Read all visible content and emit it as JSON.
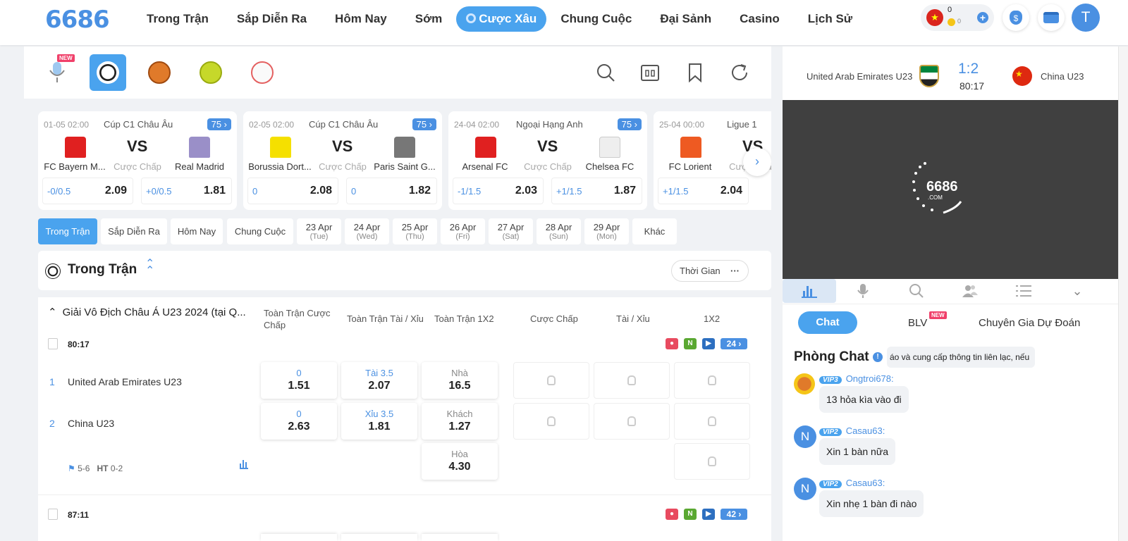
{
  "header": {
    "logo": "6686",
    "nav": [
      "Trong Trận",
      "Sắp Diễn Ra",
      "Hôm Nay",
      "Sớm",
      "Cược Xâu",
      "Chung Cuộc",
      "Đại Sảnh",
      "Casino",
      "Lịch Sử"
    ],
    "balance": "0",
    "coins": "0",
    "avatar": "T"
  },
  "sports": {
    "new_badge": "NEW"
  },
  "cards": [
    {
      "date": "01-05 02:00",
      "league": "Cúp C1 Châu Âu",
      "count": "75",
      "home": "FC Bayern M...",
      "away": "Real Madrid",
      "vs": "VS",
      "mid": "Cược Chấp",
      "o1h": "-0/0.5",
      "o1v": "2.09",
      "o2h": "+0/0.5",
      "o2v": "1.81",
      "hc": "#e02020",
      "ac": "#9a8fc8"
    },
    {
      "date": "02-05 02:00",
      "league": "Cúp C1 Châu Âu",
      "count": "75",
      "home": "Borussia Dort...",
      "away": "Paris Saint G...",
      "vs": "VS",
      "mid": "Cược Chấp",
      "o1h": "0",
      "o1v": "2.08",
      "o2h": "0",
      "o2v": "1.82",
      "hc": "#f5e000",
      "ac": "#777777"
    },
    {
      "date": "24-04 02:00",
      "league": "Ngoại Hạng Anh",
      "count": "75",
      "home": "Arsenal FC",
      "away": "Chelsea FC",
      "vs": "VS",
      "mid": "Cược Chấp",
      "o1h": "-1/1.5",
      "o1v": "2.03",
      "o2h": "+1/1.5",
      "o2v": "1.87",
      "hc": "#e02020",
      "ac": "#eeeeee"
    },
    {
      "date": "25-04 00:00",
      "league": "Ligue 1",
      "count": "",
      "home": "FC Lorient",
      "away": "",
      "vs": "VS",
      "mid": "Cược Chấp",
      "o1h": "+1/1.5",
      "o1v": "2.04",
      "o2h": "",
      "o2v": "",
      "hc": "#ee5a22",
      "ac": "#ffffff"
    }
  ],
  "dates": [
    {
      "a": "Trong Trận",
      "b": ""
    },
    {
      "a": "Sắp Diễn Ra",
      "b": ""
    },
    {
      "a": "Hôm Nay",
      "b": ""
    },
    {
      "a": "Chung Cuộc",
      "b": ""
    },
    {
      "a": "23 Apr",
      "b": "(Tue)"
    },
    {
      "a": "24 Apr",
      "b": "(Wed)"
    },
    {
      "a": "25 Apr",
      "b": "(Thu)"
    },
    {
      "a": "26 Apr",
      "b": "(Fri)"
    },
    {
      "a": "27 Apr",
      "b": "(Sat)"
    },
    {
      "a": "28 Apr",
      "b": "(Sun)"
    },
    {
      "a": "29 Apr",
      "b": "(Mon)"
    },
    {
      "a": "Khác",
      "b": ""
    }
  ],
  "section": {
    "title": "Trong Trận",
    "sort": "Thời Gian",
    "sort_more": "···"
  },
  "table": {
    "league": "Giải Vô Địch Châu Á U23 2024 (tại Q...",
    "cols": [
      "Toàn Trận Cược Chấp",
      "Toàn Trận Tài / Xỉu",
      "Toàn Trận 1X2",
      "Cược Chấp",
      "Tài / Xỉu",
      "1X2"
    ],
    "match1": {
      "time": "80:17",
      "markets": "24",
      "n": "N",
      "home_no": "1",
      "home": "United Arab Emirates U23",
      "away_no": "2",
      "away": "China U23",
      "corner": "5-6",
      "ht_label": "HT",
      "ht": "0-2",
      "hdp": [
        {
          "t": "0",
          "v": "1.51"
        },
        {
          "t": "0",
          "v": "2.63"
        }
      ],
      "ou": [
        {
          "t": "Tài 3.5",
          "v": "2.07"
        },
        {
          "t": "Xỉu 3.5",
          "v": "1.81"
        }
      ],
      "x12": [
        {
          "t": "Nhà",
          "v": "16.5"
        },
        {
          "t": "Khách",
          "v": "1.27"
        },
        {
          "t": "Hòa",
          "v": "4.30"
        }
      ]
    },
    "match2": {
      "time": "87:11",
      "markets": "42",
      "n": "N"
    }
  },
  "side": {
    "home": "United Arab Emirates U23",
    "away": "China U23",
    "score": "1:2",
    "time": "80:17",
    "stream_logo": "6686",
    "stream_sub": ".COM",
    "chat_tab": "Chat",
    "blv_tab": "BLV",
    "blv_new": "NEW",
    "expert_tab": "Chuyên Gia Dự Đoán",
    "room": "Phòng Chat",
    "notice": "áo và cung cấp thông tin liên lạc, nếu",
    "messages": [
      {
        "vip": "VIP3",
        "user": "Ongtroi678:",
        "text": "13 hỏa kìa vào đi",
        "avatar": ""
      },
      {
        "vip": "VIP2",
        "user": "Casau63:",
        "text": "Xin 1 bàn nữa",
        "avatar": "N"
      },
      {
        "vip": "VIP2",
        "user": "Casau63:",
        "text": "Xin nhẹ 1 bàn đi nào",
        "avatar": "N"
      }
    ]
  }
}
